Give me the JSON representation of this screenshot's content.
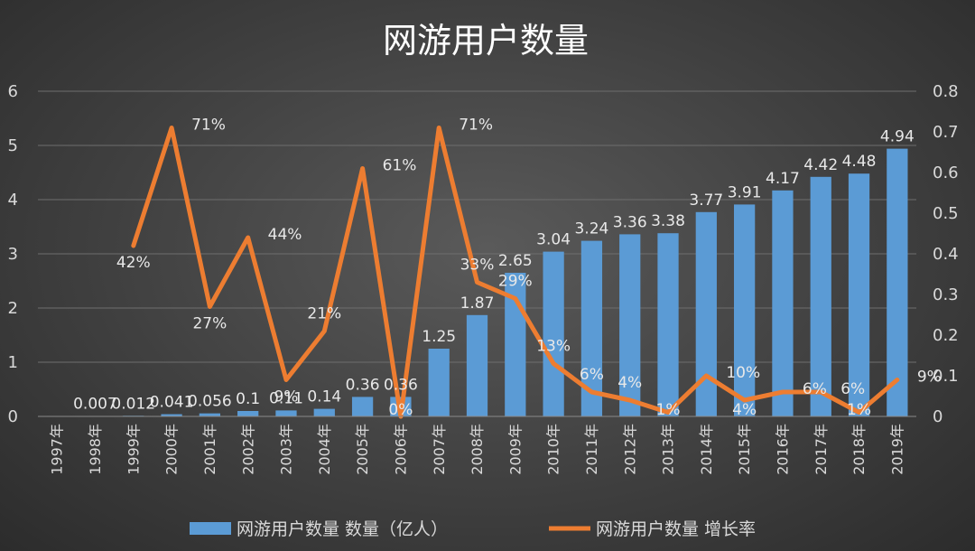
{
  "chart_data": {
    "type": "bar+line",
    "title": "网游用户数量",
    "categories": [
      "1997年",
      "1998年",
      "1999年",
      "2000年",
      "2001年",
      "2002年",
      "2003年",
      "2004年",
      "2005年",
      "2006年",
      "2007年",
      "2008年",
      "2009年",
      "2010年",
      "2011年",
      "2012年",
      "2013年",
      "2014年",
      "2015年",
      "2016年",
      "2017年",
      "2018年",
      "2019年"
    ],
    "series": [
      {
        "name": "网游用户数量 数量（亿人）",
        "type": "bar",
        "axis": "left",
        "color": "#5b9bd5",
        "values": [
          0.0,
          0.007,
          0.012,
          0.041,
          0.056,
          0.1,
          0.11,
          0.14,
          0.36,
          0.36,
          1.25,
          1.87,
          2.65,
          3.04,
          3.24,
          3.36,
          3.38,
          3.77,
          3.91,
          4.17,
          4.42,
          4.48,
          4.94
        ],
        "labels": [
          "",
          "0.007",
          "0.012",
          "0.041",
          "0.056",
          "0.1",
          "0.11",
          "0.14",
          "0.36",
          "0.36",
          "1.25",
          "1.87",
          "2.65",
          "3.04",
          "3.24",
          "3.36",
          "3.38",
          "3.77",
          "3.91",
          "4.17",
          "4.42",
          "4.48",
          "4.94"
        ]
      },
      {
        "name": "网游用户数量 增长率",
        "type": "line",
        "axis": "right",
        "color": "#ed7d31",
        "values": [
          null,
          null,
          0.42,
          0.71,
          0.27,
          0.44,
          0.09,
          0.21,
          0.61,
          0.0,
          0.71,
          0.33,
          0.29,
          0.13,
          0.06,
          0.04,
          0.01,
          0.1,
          0.04,
          0.06,
          0.06,
          0.01,
          0.09
        ],
        "labels": [
          "",
          "",
          "42%",
          "71%",
          "27%",
          "44%",
          "9%",
          "21%",
          "61%",
          "0%",
          "71%",
          "33%",
          "29%",
          "13%",
          "6%",
          "4%",
          "1%",
          "10%",
          "4%",
          "6%",
          "6%",
          "1%",
          "9%"
        ]
      }
    ],
    "yleft": {
      "min": 0,
      "max": 6,
      "ticks": [
        "0",
        "1",
        "2",
        "3",
        "4",
        "5",
        "6"
      ]
    },
    "yright": {
      "min": 0,
      "max": 0.8,
      "ticks": [
        "0",
        "0.1",
        "0.2",
        "0.3",
        "0.4",
        "0.5",
        "0.6",
        "0.7",
        "0.8"
      ]
    },
    "grid": true,
    "legend": "bottom"
  }
}
